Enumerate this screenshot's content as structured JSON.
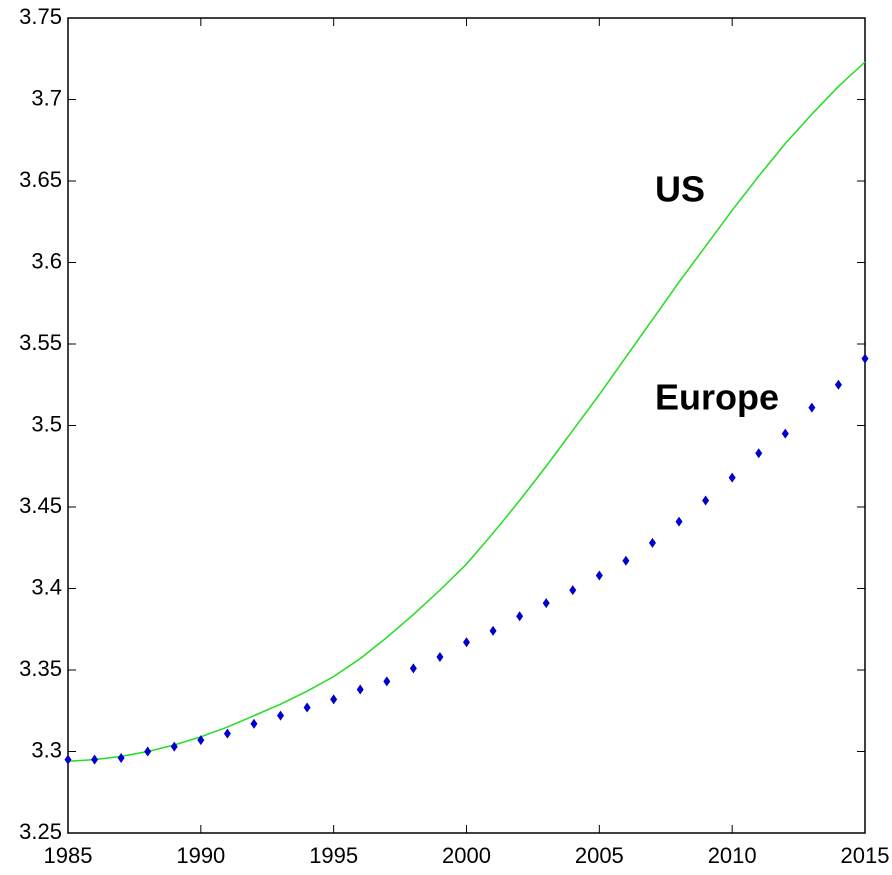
{
  "chart_data": {
    "type": "line",
    "x": [
      1985,
      1986,
      1987,
      1988,
      1989,
      1990,
      1991,
      1992,
      1993,
      1994,
      1995,
      1996,
      1997,
      1998,
      1999,
      2000,
      2001,
      2002,
      2003,
      2004,
      2005,
      2006,
      2007,
      2008,
      2009,
      2010,
      2011,
      2012,
      2013,
      2014,
      2015
    ],
    "series": [
      {
        "name": "US",
        "color": "#22dd22",
        "mode": "line",
        "values": [
          3.294,
          3.295,
          3.297,
          3.3,
          3.304,
          3.309,
          3.315,
          3.322,
          3.329,
          3.337,
          3.346,
          3.357,
          3.37,
          3.384,
          3.399,
          3.415,
          3.434,
          3.454,
          3.475,
          3.497,
          3.519,
          3.542,
          3.565,
          3.588,
          3.61,
          3.632,
          3.653,
          3.673,
          3.691,
          3.708,
          3.723
        ]
      },
      {
        "name": "Europe",
        "color": "#0000cc",
        "mode": "markers",
        "values": [
          3.295,
          3.295,
          3.296,
          3.3,
          3.303,
          3.307,
          3.311,
          3.317,
          3.322,
          3.327,
          3.332,
          3.338,
          3.343,
          3.351,
          3.358,
          3.367,
          3.374,
          3.383,
          3.391,
          3.399,
          3.408,
          3.417,
          3.428,
          3.441,
          3.454,
          3.468,
          3.483,
          3.495,
          3.511,
          3.525,
          3.541
        ]
      }
    ],
    "xlim": [
      1985,
      2015
    ],
    "xticks": [
      1985,
      1990,
      1995,
      2000,
      2005,
      2010,
      2015
    ],
    "ylim": [
      3.25,
      3.75
    ],
    "yticks": [
      3.25,
      3.3,
      3.35,
      3.4,
      3.45,
      3.5,
      3.55,
      3.6,
      3.65,
      3.7,
      3.75
    ]
  }
}
